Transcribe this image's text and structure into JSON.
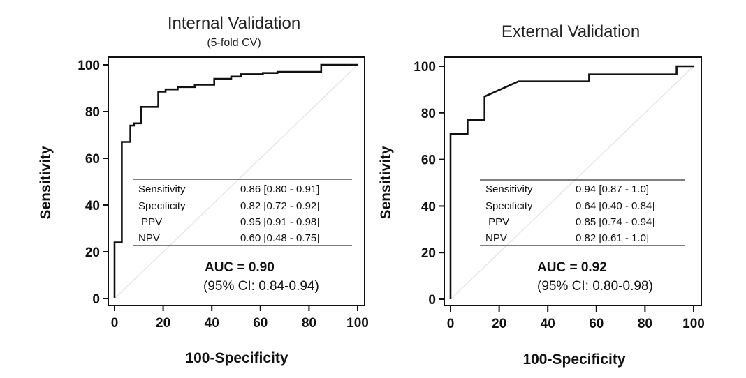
{
  "chart_data": [
    {
      "type": "line",
      "title": "Internal Validation",
      "subtitle": "(5-fold CV)",
      "xlabel": "100-Specificity",
      "ylabel": "Sensitivity",
      "xlim": [
        0,
        100
      ],
      "ylim": [
        0,
        100
      ],
      "xticks": [
        "0",
        "20",
        "40",
        "60",
        "80",
        "100"
      ],
      "yticks": [
        "0",
        "20",
        "40",
        "60",
        "80",
        "100"
      ],
      "grid": false,
      "diagonal_reference": true,
      "x": [
        0,
        0,
        3,
        3,
        6.5,
        6.5,
        8,
        8,
        11,
        11,
        18,
        18,
        21,
        21,
        26,
        26,
        33,
        33,
        41,
        41,
        48,
        48,
        52,
        52,
        61,
        61,
        67,
        67,
        85,
        85,
        100
      ],
      "y": [
        0,
        24,
        24,
        67,
        67,
        74,
        74,
        75,
        75,
        82,
        82,
        88.5,
        88.5,
        89.5,
        89.5,
        90.5,
        90.5,
        91.5,
        91.5,
        94,
        94,
        95,
        95,
        96,
        96,
        96.5,
        96.5,
        97,
        97,
        100,
        100
      ],
      "metrics": [
        {
          "name": "Sensitivity",
          "value": "0.86 [0.80 - 0.91]"
        },
        {
          "name": "Specificity",
          "value": "0.82 [0.72 - 0.92]"
        },
        {
          "name": " PPV",
          "value": "0.95 [0.91 - 0.98]"
        },
        {
          "name": "NPV",
          "value": "0.60 [0.48 - 0.75]"
        }
      ],
      "auc_label": "AUC = 0.90",
      "ci_label": "(95% CI: 0.84-0.94)"
    },
    {
      "type": "line",
      "title": "External Validation",
      "subtitle": "",
      "xlabel": "100-Specificity",
      "ylabel": "Sensitivity",
      "xlim": [
        0,
        100
      ],
      "ylim": [
        0,
        100
      ],
      "xticks": [
        "0",
        "20",
        "40",
        "60",
        "80",
        "100"
      ],
      "yticks": [
        "0",
        "20",
        "40",
        "60",
        "80",
        "100"
      ],
      "grid": false,
      "diagonal_reference": true,
      "x": [
        0,
        0,
        7,
        7,
        14,
        14,
        28,
        57,
        57,
        93,
        93,
        100
      ],
      "y": [
        0,
        71,
        71,
        77,
        77,
        87,
        93.5,
        93.5,
        96.5,
        96.5,
        100,
        100
      ],
      "metrics": [
        {
          "name": "Sensitivity",
          "value": "0.94 [0.87 - 1.0]"
        },
        {
          "name": "Specificity",
          "value": "0.64 [0.40 - 0.84]"
        },
        {
          "name": " PPV",
          "value": "0.85 [0.74 - 0.94]"
        },
        {
          "name": "NPV",
          "value": "0.82 [0.61 - 1.0]"
        }
      ],
      "auc_label": "AUC = 0.92",
      "ci_label": "(95% CI: 0.80-0.98)"
    }
  ],
  "colors": {
    "curve": "#111111",
    "diagonal": "#e6e6e6",
    "frame": "#111111",
    "table_rule": "#555555"
  }
}
